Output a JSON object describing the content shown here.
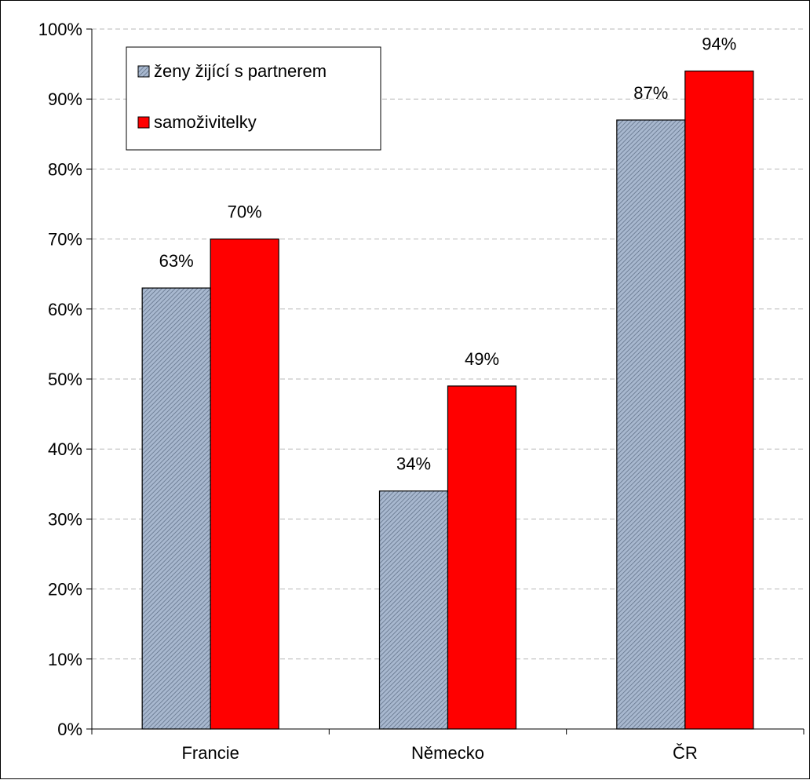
{
  "chart_data": {
    "type": "bar",
    "categories": [
      "Francie",
      "Německo",
      "ČR"
    ],
    "series": [
      {
        "name": "ženy žijící s partnerem",
        "values": [
          63,
          34,
          87
        ],
        "labels": [
          "63%",
          "34%",
          "87%"
        ],
        "color": "#9fb0c8",
        "pattern": "diagonal-hatch"
      },
      {
        "name": "samoživitelky",
        "values": [
          70,
          49,
          94
        ],
        "labels": [
          "70%",
          "49%",
          "94%"
        ],
        "color": "#ff0000"
      }
    ],
    "ylim": [
      0,
      100
    ],
    "yticks": [
      0,
      10,
      20,
      30,
      40,
      50,
      60,
      70,
      80,
      90,
      100
    ],
    "ytick_labels": [
      "0%",
      "10%",
      "20%",
      "30%",
      "40%",
      "50%",
      "60%",
      "70%",
      "80%",
      "90%",
      "100%"
    ],
    "grid": "horizontal-dashed",
    "legend_position": "top-left"
  }
}
